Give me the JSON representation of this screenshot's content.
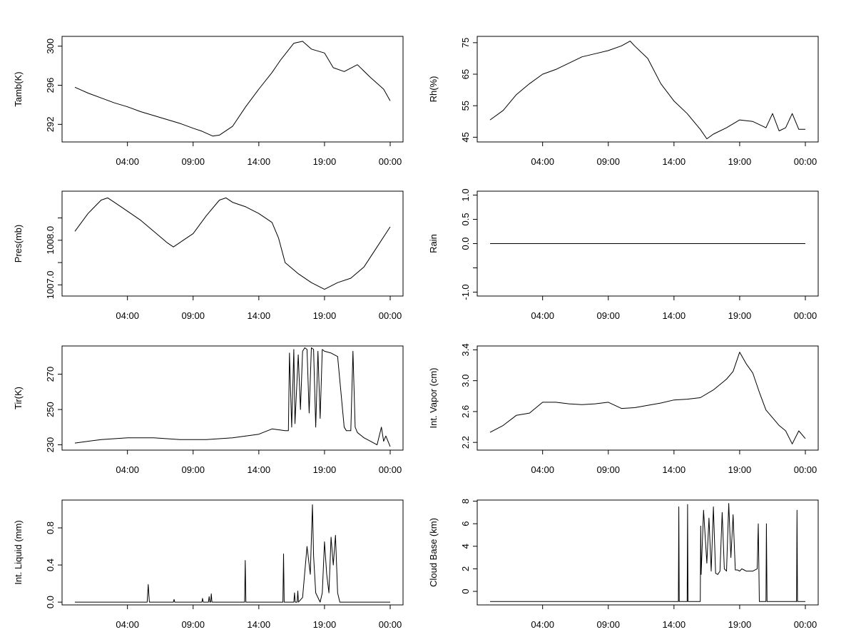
{
  "x_ticks": [
    "04:00",
    "09:00",
    "14:00",
    "19:00",
    "00:00"
  ],
  "chart_data": [
    {
      "type": "line",
      "ylabel": "Tamb(K)",
      "yticks": [
        "292",
        "296",
        "300"
      ],
      "ylim": [
        290.2,
        301.0
      ],
      "xlim": [
        "00:00",
        "24:00"
      ],
      "series": [
        {
          "x": [
            "00:00",
            "01:00",
            "02:00",
            "03:00",
            "04:00",
            "05:00",
            "06:00",
            "07:00",
            "08:00",
            "09:00",
            "09:40",
            "10:30",
            "11:00",
            "12:00",
            "13:00",
            "14:00",
            "15:00",
            "15:40",
            "16:40",
            "17:20",
            "18:00",
            "19:00",
            "19:40",
            "20:30",
            "21:30",
            "22:30",
            "23:30",
            "24:00"
          ],
          "y": [
            295.8,
            295.2,
            294.7,
            294.2,
            293.8,
            293.3,
            292.9,
            292.5,
            292.1,
            291.6,
            291.3,
            290.8,
            290.9,
            291.8,
            293.8,
            295.6,
            297.3,
            298.6,
            300.3,
            300.5,
            299.7,
            299.3,
            297.8,
            297.4,
            298.1,
            296.8,
            295.6,
            294.4
          ]
        }
      ]
    },
    {
      "type": "line",
      "ylabel": "Rh(%)",
      "yticks": [
        "45",
        "55",
        "65",
        "75"
      ],
      "ylim": [
        43.5,
        77
      ],
      "xlim": [
        "00:00",
        "24:00"
      ],
      "series": [
        {
          "x": [
            "00:00",
            "01:00",
            "02:00",
            "03:00",
            "04:00",
            "05:00",
            "06:00",
            "07:00",
            "08:00",
            "09:00",
            "10:00",
            "10:40",
            "11:00",
            "12:00",
            "13:00",
            "14:00",
            "15:00",
            "16:00",
            "16:30",
            "17:00",
            "18:00",
            "19:00",
            "20:00",
            "21:00",
            "21:30",
            "22:00",
            "22:30",
            "23:00",
            "23:30",
            "24:00"
          ],
          "y": [
            50.5,
            53.5,
            58.5,
            62,
            65,
            66.5,
            68.5,
            70.5,
            71.5,
            72.5,
            74,
            75.5,
            74,
            70,
            62,
            56.5,
            52.5,
            47.5,
            44.5,
            46,
            48,
            50.5,
            50,
            48,
            52.5,
            47,
            48,
            52.5,
            47.5,
            47.5
          ]
        }
      ]
    },
    {
      "type": "line",
      "ylabel": "Pres(mb)",
      "yticks": [
        "1007.0",
        "1007.5",
        "1008.0",
        "1008.5"
      ],
      "ytick_labels_shown": [
        "1007.0",
        "",
        "1008.0",
        ""
      ],
      "ylim": [
        1006.75,
        1009.1
      ],
      "xlim": [
        "00:00",
        "24:00"
      ],
      "series": [
        {
          "x": [
            "00:00",
            "01:00",
            "02:00",
            "02:30",
            "03:00",
            "04:00",
            "05:00",
            "06:00",
            "07:00",
            "07:30",
            "08:00",
            "09:00",
            "10:00",
            "11:00",
            "11:30",
            "12:00",
            "13:00",
            "14:00",
            "15:00",
            "15:30",
            "16:00",
            "17:00",
            "18:00",
            "19:00",
            "20:00",
            "21:00",
            "22:00",
            "23:00",
            "24:00"
          ],
          "y": [
            1008.2,
            1008.6,
            1008.9,
            1008.95,
            1008.85,
            1008.65,
            1008.45,
            1008.2,
            1007.95,
            1007.85,
            1007.95,
            1008.15,
            1008.55,
            1008.9,
            1008.95,
            1008.85,
            1008.75,
            1008.6,
            1008.4,
            1008.05,
            1007.5,
            1007.25,
            1007.05,
            1006.9,
            1007.05,
            1007.15,
            1007.4,
            1007.85,
            1008.3
          ]
        }
      ]
    },
    {
      "type": "line",
      "ylabel": "Rain",
      "yticks": [
        "-1.0",
        "-0.5",
        "0.0",
        "0.5",
        "1.0"
      ],
      "ytick_labels_shown": [
        "-1.0",
        "",
        "0.0",
        "0.5",
        "1.0"
      ],
      "ylim": [
        -1.08,
        1.08
      ],
      "xlim": [
        "00:00",
        "24:00"
      ],
      "series": [
        {
          "x": [
            "00:00",
            "24:00"
          ],
          "y": [
            0,
            0
          ]
        }
      ]
    },
    {
      "type": "line",
      "ylabel": "Tir(K)",
      "yticks": [
        "230",
        "250",
        "270"
      ],
      "ylim": [
        227,
        286
      ],
      "xlim": [
        "00:00",
        "24:00"
      ],
      "series": [
        {
          "x": [
            "00:00",
            "02:00",
            "04:00",
            "06:00",
            "08:00",
            "10:00",
            "12:00",
            "14:00",
            "15:00",
            "16:00",
            "16:15",
            "16:20",
            "16:30",
            "16:40",
            "16:45",
            "17:00",
            "17:10",
            "17:20",
            "17:30",
            "17:40",
            "17:50",
            "18:00",
            "18:10",
            "18:20",
            "18:30",
            "18:40",
            "18:50",
            "19:00",
            "19:30",
            "20:00",
            "20:30",
            "20:40",
            "21:00",
            "21:10",
            "21:20",
            "21:30",
            "22:00",
            "22:30",
            "23:00",
            "23:20",
            "23:30",
            "23:40",
            "24:00"
          ],
          "y": [
            231,
            233,
            234,
            234,
            233,
            233,
            234,
            236,
            239,
            238,
            238,
            282,
            240,
            284,
            242,
            281,
            250,
            283,
            285,
            284,
            248,
            285,
            284,
            240,
            283,
            245,
            284,
            283,
            282,
            280,
            240,
            238,
            238,
            283,
            240,
            237,
            234,
            232,
            230,
            240,
            232,
            235,
            229
          ]
        }
      ]
    },
    {
      "type": "line",
      "ylabel": "Int. Vapor (cm)",
      "yticks": [
        "2.2",
        "2.6",
        "3.0",
        "3.4"
      ],
      "ylim": [
        2.1,
        3.45
      ],
      "xlim": [
        "00:00",
        "24:00"
      ],
      "series": [
        {
          "x": [
            "00:00",
            "01:00",
            "02:00",
            "03:00",
            "04:00",
            "05:00",
            "06:00",
            "07:00",
            "08:00",
            "09:00",
            "10:00",
            "11:00",
            "12:00",
            "13:00",
            "14:00",
            "15:00",
            "16:00",
            "17:00",
            "18:00",
            "18:30",
            "19:00",
            "19:30",
            "20:00",
            "20:30",
            "21:00",
            "21:30",
            "22:00",
            "22:30",
            "23:00",
            "23:30",
            "24:00"
          ],
          "y": [
            2.33,
            2.42,
            2.55,
            2.58,
            2.72,
            2.72,
            2.7,
            2.69,
            2.7,
            2.72,
            2.64,
            2.65,
            2.68,
            2.71,
            2.75,
            2.76,
            2.78,
            2.88,
            3.02,
            3.12,
            3.37,
            3.22,
            3.1,
            2.85,
            2.62,
            2.52,
            2.42,
            2.35,
            2.18,
            2.35,
            2.25
          ]
        }
      ]
    },
    {
      "type": "line",
      "ylabel": "Int. Liquid (mm)",
      "yticks": [
        "0.0",
        "0.4",
        "0.8"
      ],
      "ylim": [
        -0.03,
        1.1
      ],
      "xlim": [
        "00:00",
        "24:00"
      ],
      "series": [
        {
          "x": [
            "00:00",
            "05:30",
            "05:35",
            "05:40",
            "07:30",
            "07:33",
            "07:36",
            "09:40",
            "09:43",
            "09:46",
            "10:10",
            "10:13",
            "10:16",
            "10:20",
            "10:23",
            "10:26",
            "12:55",
            "12:58",
            "13:01",
            "15:50",
            "15:53",
            "15:56",
            "16:40",
            "16:43",
            "16:46",
            "16:55",
            "16:58",
            "17:01",
            "17:20",
            "17:40",
            "17:55",
            "18:05",
            "18:10",
            "18:20",
            "18:30",
            "18:40",
            "18:50",
            "19:00",
            "19:10",
            "19:20",
            "19:30",
            "19:40",
            "19:50",
            "20:00",
            "20:10",
            "20:20",
            "24:00"
          ],
          "y": [
            0,
            0,
            0.19,
            0,
            0,
            0.03,
            0,
            0,
            0.04,
            0,
            0,
            0.06,
            0,
            0,
            0.09,
            0,
            0,
            0.45,
            0,
            0,
            0.52,
            0,
            0,
            0.1,
            0,
            0,
            0.12,
            0,
            0.05,
            0.6,
            0.3,
            1.05,
            0.5,
            0.1,
            0.05,
            0,
            0.1,
            0.65,
            0.3,
            0.1,
            0.7,
            0.4,
            0.72,
            0.1,
            0,
            0,
            0
          ]
        }
      ]
    },
    {
      "type": "line",
      "ylabel": "Cloud Base (km)",
      "yticks": [
        "0",
        "2",
        "4",
        "6",
        "8"
      ],
      "ylim": [
        -1.2,
        8.1
      ],
      "xlim": [
        "00:00",
        "24:00"
      ],
      "series": [
        {
          "x": [
            "00:00",
            "14:20",
            "14:22",
            "14:24",
            "15:00",
            "15:02",
            "15:04",
            "16:00",
            "16:02",
            "16:04",
            "16:15",
            "16:30",
            "16:40",
            "16:50",
            "17:00",
            "17:10",
            "17:20",
            "17:30",
            "17:40",
            "17:50",
            "18:00",
            "18:10",
            "18:20",
            "18:30",
            "18:40",
            "18:50",
            "19:00",
            "19:10",
            "19:20",
            "19:30",
            "20:00",
            "20:20",
            "20:25",
            "20:30",
            "21:00",
            "21:02",
            "21:05",
            "21:10",
            "23:20",
            "23:22",
            "23:24",
            "23:40",
            "24:00"
          ],
          "y": [
            -0.9,
            -0.9,
            7.5,
            -0.9,
            -0.9,
            7.7,
            -0.9,
            -0.9,
            5.8,
            1.5,
            7.2,
            2.5,
            6.5,
            1.8,
            7.5,
            1.6,
            1.5,
            1.8,
            7.0,
            2.0,
            1.8,
            7.8,
            3.0,
            6.8,
            1.9,
            1.9,
            1.8,
            2.0,
            1.9,
            1.8,
            1.8,
            2.0,
            6.0,
            -0.9,
            -0.9,
            6.0,
            -0.9,
            -0.9,
            -0.9,
            7.2,
            -0.9,
            -0.9,
            -0.9
          ]
        }
      ]
    }
  ]
}
